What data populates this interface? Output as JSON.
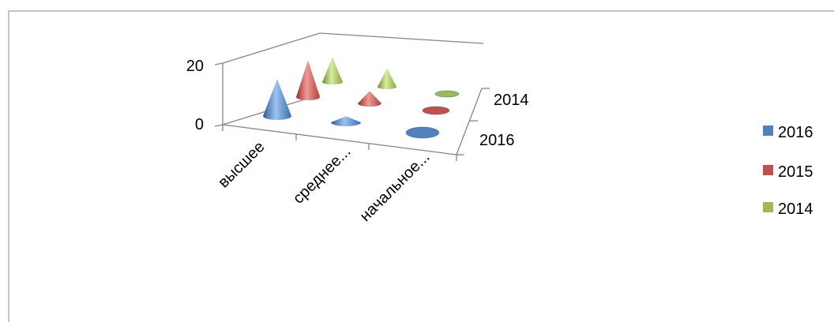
{
  "chart_data": {
    "type": "bar",
    "subtype": "3d-cone",
    "title": "",
    "categories": [
      "высшее",
      "среднее...",
      "начальное..."
    ],
    "series": [
      {
        "name": "2016",
        "values": [
          12,
          2,
          0
        ],
        "color": "#4F81BD"
      },
      {
        "name": "2015",
        "values": [
          12,
          4,
          0
        ],
        "color": "#C0504D"
      },
      {
        "name": "2014",
        "values": [
          8,
          6,
          0
        ],
        "color": "#9BBB59"
      }
    ],
    "depth_axis": {
      "tick_labels": [
        "2014",
        "2016"
      ]
    },
    "y_axis": {
      "tick_labels": [
        "0",
        "20"
      ],
      "ylim": [
        0,
        20
      ]
    },
    "legend": {
      "position": "right",
      "entries": [
        "2016",
        "2015",
        "2014"
      ]
    },
    "gridlines": false
  }
}
